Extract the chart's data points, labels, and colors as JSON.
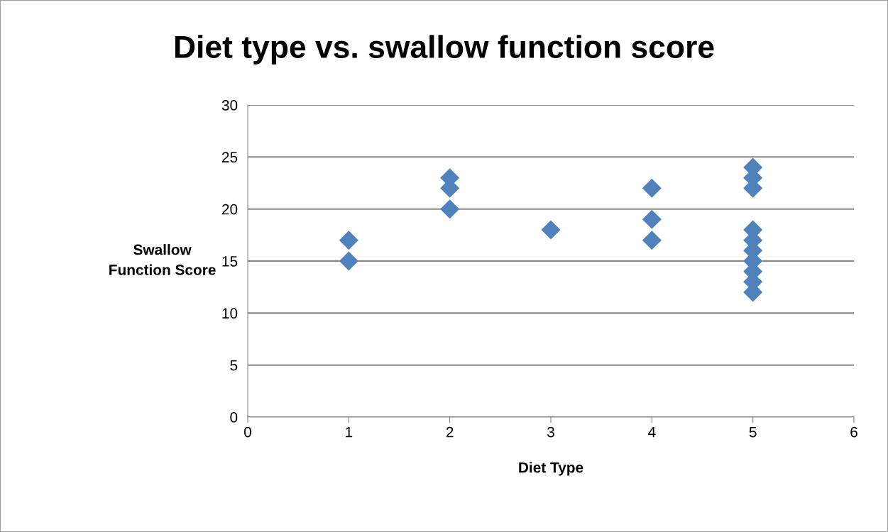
{
  "chart_data": {
    "type": "scatter",
    "title": "Diet type vs. swallow function score",
    "xlabel": "Diet Type",
    "ylabel": "Swallow\nFunction Score",
    "x": [
      1,
      1,
      2,
      2,
      2,
      3,
      4,
      4,
      4,
      5,
      5,
      5,
      5,
      5,
      5,
      5,
      5,
      5,
      5
    ],
    "values": [
      17,
      15,
      23,
      22,
      20,
      18,
      22,
      19,
      17,
      24,
      23,
      22,
      18,
      17,
      16,
      15,
      14,
      13,
      12
    ],
    "color": "#4f81bd",
    "marker": "diamond",
    "xlim": [
      0,
      6
    ],
    "xticks": [
      0,
      1,
      2,
      3,
      4,
      5,
      6
    ],
    "ylim": [
      0,
      30
    ],
    "yticks": [
      0,
      5,
      10,
      15,
      20,
      25,
      30
    ],
    "grid": "y"
  }
}
